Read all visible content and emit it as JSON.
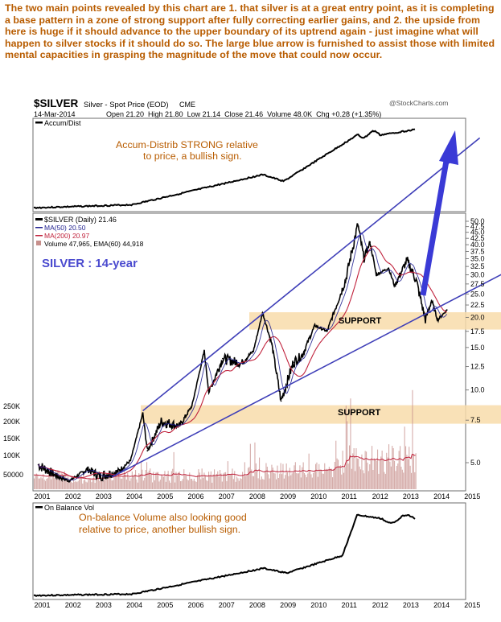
{
  "commentary": "The two main points revealed by this chart are 1. that silver is at a great entry point, as it is completing a base pattern in a zone of strong support after fully correcting earlier gains, and 2. the upside from here is huge if it should advance to the upper boundary of its uptrend again - just imagine what will happen to silver stocks if it should do so. The large blue arrow is furnished to assist those with limited mental capacities in grasping the magnitude of the move that could now occur.",
  "header": {
    "symbol": "$SILVER",
    "description": "Silver - Spot Price (EOD)",
    "exchange": "CME",
    "credit": "@StockCharts.com",
    "date": "14-Mar-2014",
    "quote": "Open 21.20  High 21.80  Low 21.14  Close 21.46  Volume 48.0K  Chg +0.28 (+1.35%)"
  },
  "colors": {
    "commentary": "#b85c00",
    "trendline": "#3f3fb8",
    "arrow": "#3a3ad6",
    "support_band": "#f8dcaa",
    "ma50": "#1f1f8f",
    "ma200": "#c0223c",
    "volume": "#c7908c",
    "price": "#000000"
  },
  "panels": {
    "accum_dist": {
      "legend": "Accum/Dist",
      "annotation_line1": "Accum-Distrib STRONG relative",
      "annotation_line2": "to price, a bullish sign."
    },
    "price": {
      "legend_price": "$SILVER (Daily) 21.46",
      "legend_ma50": "MA(50) 20.50",
      "legend_ma200": "MA(200) 20.97",
      "legend_volume": "Volume 47,965, EMA(60) 44,918",
      "chart_label": "SILVER : 14-year",
      "support_upper": "SUPPORT",
      "support_lower": "SUPPORT"
    },
    "obv": {
      "legend": "On Balance Vol",
      "annotation_line1": "On-balance Volume also looking good",
      "annotation_line2": "relative to price, another bullish sign."
    }
  },
  "chart_data": {
    "type": "line",
    "title": "$SILVER Silver - Spot Price (EOD) CME",
    "yscale": "log",
    "x_ticks": [
      "2001",
      "2002",
      "2003",
      "2004",
      "2005",
      "2006",
      "2007",
      "2008",
      "2009",
      "2010",
      "2011",
      "2012",
      "2013",
      "2014",
      "2015"
    ],
    "y_ticks": [
      "50.0",
      "47.5",
      "45.0",
      "42.5",
      "40.0",
      "37.5",
      "35.0",
      "32.5",
      "30.0",
      "27.5",
      "25.0",
      "22.5",
      "20.0",
      "17.5",
      "15.0",
      "12.5",
      "10.0",
      "7.5",
      "5.0"
    ],
    "volume_ticks": [
      "250K",
      "200K",
      "150K",
      "100K",
      "50000"
    ],
    "price_series": [
      {
        "x": 2000.9,
        "y": 4.9
      },
      {
        "x": 2001.5,
        "y": 4.4
      },
      {
        "x": 2001.9,
        "y": 4.2
      },
      {
        "x": 2002.5,
        "y": 4.7
      },
      {
        "x": 2002.9,
        "y": 4.4
      },
      {
        "x": 2003.5,
        "y": 4.6
      },
      {
        "x": 2003.9,
        "y": 5.1
      },
      {
        "x": 2004.3,
        "y": 8.0
      },
      {
        "x": 2004.45,
        "y": 5.6
      },
      {
        "x": 2004.9,
        "y": 7.4
      },
      {
        "x": 2005.5,
        "y": 7.1
      },
      {
        "x": 2005.9,
        "y": 8.6
      },
      {
        "x": 2006.3,
        "y": 14.5
      },
      {
        "x": 2006.45,
        "y": 9.8
      },
      {
        "x": 2006.9,
        "y": 13.5
      },
      {
        "x": 2007.5,
        "y": 12.9
      },
      {
        "x": 2007.9,
        "y": 14.5
      },
      {
        "x": 2008.2,
        "y": 20.9
      },
      {
        "x": 2008.5,
        "y": 15.5
      },
      {
        "x": 2008.8,
        "y": 9.0
      },
      {
        "x": 2009.2,
        "y": 13.0
      },
      {
        "x": 2009.5,
        "y": 14.0
      },
      {
        "x": 2009.9,
        "y": 18.5
      },
      {
        "x": 2010.3,
        "y": 17.5
      },
      {
        "x": 2010.9,
        "y": 28.5
      },
      {
        "x": 2011.3,
        "y": 48.5
      },
      {
        "x": 2011.5,
        "y": 35.0
      },
      {
        "x": 2011.7,
        "y": 41.0
      },
      {
        "x": 2011.9,
        "y": 30.0
      },
      {
        "x": 2012.3,
        "y": 32.0
      },
      {
        "x": 2012.5,
        "y": 27.0
      },
      {
        "x": 2012.9,
        "y": 34.5
      },
      {
        "x": 2013.2,
        "y": 28.5
      },
      {
        "x": 2013.5,
        "y": 19.5
      },
      {
        "x": 2013.7,
        "y": 23.5
      },
      {
        "x": 2013.9,
        "y": 19.5
      },
      {
        "x": 2014.2,
        "y": 21.46
      }
    ],
    "support_zones": [
      [
        17.8,
        21.0
      ],
      [
        7.25,
        8.65
      ]
    ],
    "trendlines": {
      "upper_channel": [
        {
          "x": 2004.3,
          "y": 8.2
        },
        {
          "x": 2014.3,
          "y": 88.0
        }
      ],
      "lower_channel": [
        {
          "x": 2003.5,
          "y": 4.5
        },
        {
          "x": 2015.5,
          "y": 28.0
        }
      ]
    }
  }
}
